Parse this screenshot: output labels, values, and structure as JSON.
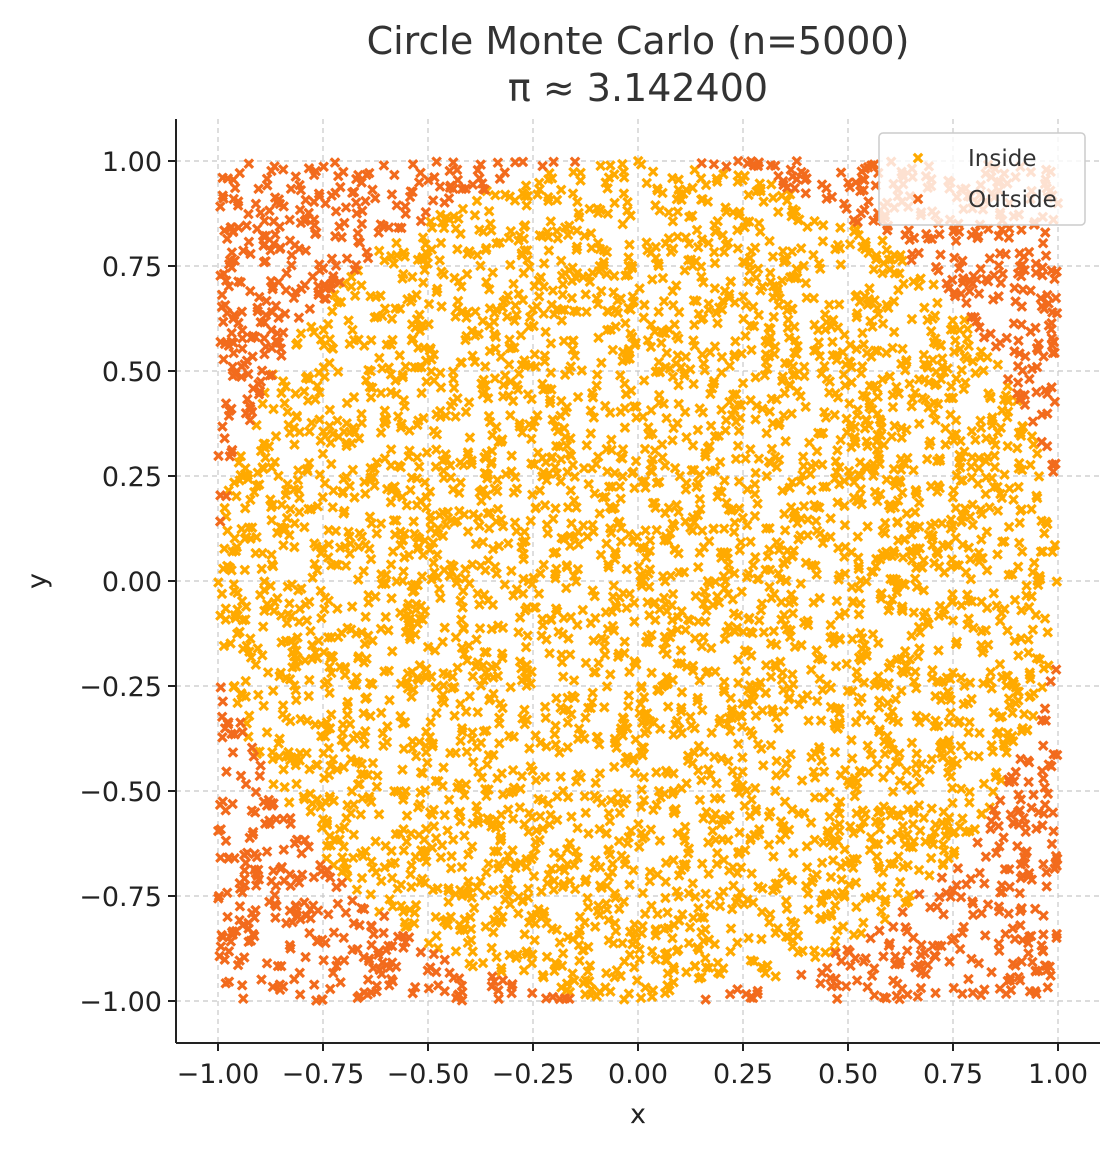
{
  "chart_data": {
    "type": "scatter",
    "title": "Circle Monte Carlo (n=5000)",
    "subtitle": "π ≈ 3.142400",
    "xlabel": "x",
    "ylabel": "y",
    "xlim": [
      -1.1,
      1.1
    ],
    "ylim": [
      -1.1,
      1.1
    ],
    "x_ticks": [
      -1.0,
      -0.75,
      -0.5,
      -0.25,
      0.0,
      0.25,
      0.5,
      0.75,
      1.0
    ],
    "x_tick_labels": [
      "−1.00",
      "−0.75",
      "−0.50",
      "−0.25",
      "0.00",
      "0.25",
      "0.50",
      "0.75",
      "1.00"
    ],
    "y_ticks": [
      1.0,
      0.75,
      0.5,
      0.25,
      0.0,
      -0.25,
      -0.5,
      -0.75,
      -1.0
    ],
    "y_tick_labels": [
      "1.00",
      "0.75",
      "0.50",
      "0.25",
      "0.00",
      "−0.25",
      "−0.50",
      "−0.75",
      "−1.00"
    ],
    "grid": true,
    "legend_position": "top-right",
    "n_points": 5000,
    "sampling": "uniform in [-1, 1] × [-1, 1]; inside if x² + y² ≤ 1",
    "marker": "x",
    "series": [
      {
        "name": "Inside",
        "color": "#ffaa00",
        "rule": "x^2 + y^2 <= 1"
      },
      {
        "name": "Outside",
        "color": "#f26b1d",
        "rule": "x^2 + y^2 > 1"
      }
    ]
  }
}
